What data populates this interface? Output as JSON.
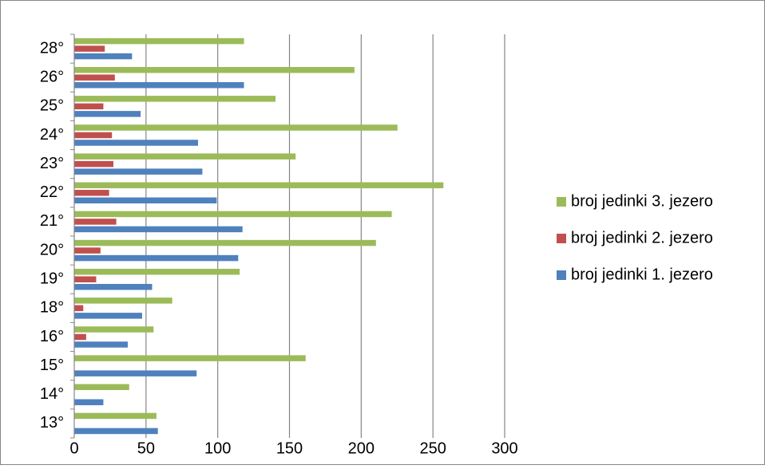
{
  "chart_data": {
    "type": "bar",
    "orientation": "horizontal",
    "title": "",
    "xlabel": "",
    "ylabel": "",
    "categories": [
      "13°",
      "14°",
      "15°",
      "16°",
      "18°",
      "19°",
      "20°",
      "21°",
      "22°",
      "23°",
      "24°",
      "25°",
      "26°",
      "28°"
    ],
    "xlim": [
      0,
      300
    ],
    "xticks": [
      0,
      50,
      100,
      150,
      200,
      250,
      300
    ],
    "grid": "vertical",
    "legend_position": "right",
    "series": [
      {
        "name": "broj jedinki 1. jezero",
        "color": "#4F81BD",
        "values": [
          58,
          20,
          85,
          37,
          47,
          54,
          114,
          117,
          99,
          89,
          86,
          46,
          118,
          40
        ]
      },
      {
        "name": "broj jedinki 2. jezero",
        "color": "#C0504D",
        "values": [
          0,
          0,
          0,
          8,
          6,
          15,
          18,
          29,
          24,
          27,
          26,
          20,
          28,
          21
        ]
      },
      {
        "name": "broj jedinki 3. jezero",
        "color": "#9BBB59",
        "values": [
          57,
          38,
          161,
          55,
          68,
          115,
          210,
          221,
          257,
          154,
          225,
          140,
          195,
          118
        ]
      }
    ],
    "legend_order": [
      "broj jedinki 3. jezero",
      "broj jedinki 2. jezero",
      "broj jedinki 1. jezero"
    ]
  }
}
